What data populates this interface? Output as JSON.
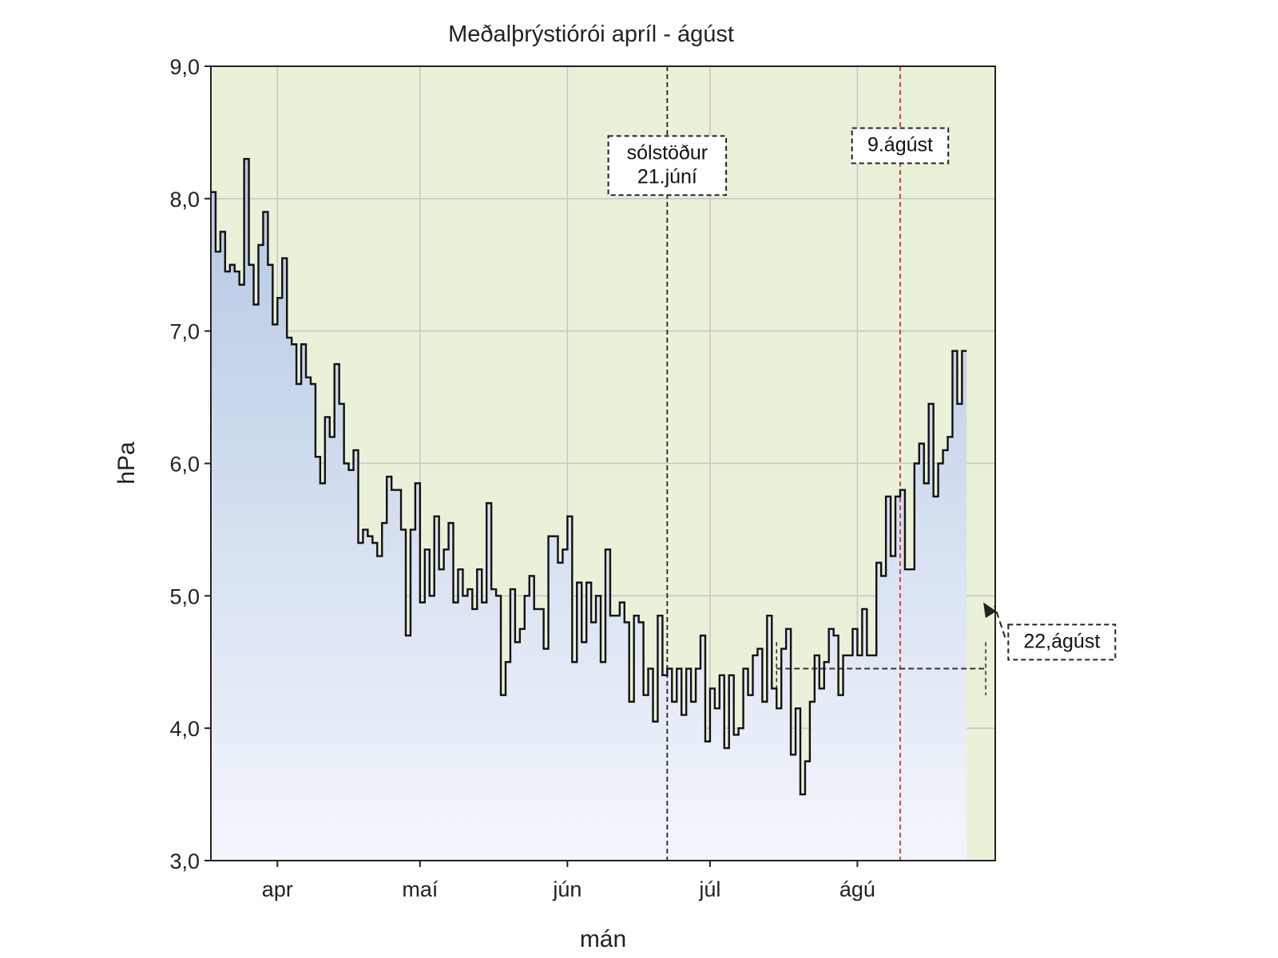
{
  "chart_data": {
    "type": "line",
    "title": "Meðalþrýstiórói apríl - ágúst",
    "xlabel": "mán",
    "ylabel": "hPa",
    "ylim": [
      3.0,
      9.0
    ],
    "yticks": [
      "3,0",
      "4,0",
      "5,0",
      "6,0",
      "7,0",
      "8,0",
      "9,0"
    ],
    "ytick_values": [
      3,
      4,
      5,
      6,
      7,
      8,
      9
    ],
    "xlim": [
      -14,
      151
    ],
    "xticks": [
      "apr",
      "maí",
      "jún",
      "júl",
      "ágú"
    ],
    "xtick_days": [
      0,
      30,
      61,
      91,
      122
    ],
    "grid": true,
    "step": true,
    "series": [
      {
        "values": [
          8.05,
          7.6,
          7.75,
          7.45,
          7.5,
          7.45,
          7.35,
          8.3,
          7.5,
          7.2,
          7.65,
          7.9,
          7.5,
          7.05,
          7.25,
          7.55,
          6.95,
          6.9,
          6.6,
          6.9,
          6.65,
          6.6,
          6.05,
          5.85,
          6.35,
          6.2,
          6.75,
          6.45,
          6.0,
          5.95,
          6.1,
          5.4,
          5.5,
          5.45,
          5.4,
          5.3,
          5.55,
          5.9,
          5.8,
          5.8,
          5.5,
          4.7,
          5.5,
          5.85,
          4.95,
          5.35,
          5.0,
          5.6,
          5.2,
          5.35,
          5.55,
          4.95,
          5.2,
          5.0,
          5.05,
          4.9,
          5.2,
          4.95,
          5.7,
          5.05,
          5.0,
          4.25,
          4.5,
          5.05,
          4.65,
          4.75,
          5.0,
          5.15,
          4.9,
          4.9,
          4.6,
          5.45,
          5.45,
          5.25,
          5.35,
          5.6,
          4.5,
          5.1,
          4.65,
          5.1,
          4.8,
          5.0,
          4.5,
          5.35,
          4.85,
          4.85,
          4.95,
          4.8,
          4.2,
          4.85,
          4.8,
          4.25,
          4.45,
          4.05,
          4.85,
          4.4,
          4.45,
          4.2,
          4.45,
          4.1,
          4.45,
          4.2,
          4.45,
          4.7,
          3.9,
          4.3,
          4.15,
          4.4,
          3.85,
          4.4,
          3.95,
          4.0,
          4.45,
          4.25,
          4.55,
          4.6,
          4.2,
          4.85,
          4.3,
          4.15,
          4.6,
          4.75,
          3.8,
          4.15,
          3.5,
          3.75,
          4.2,
          4.55,
          4.3,
          4.5,
          4.75,
          4.7,
          4.25,
          4.55,
          4.55,
          4.75,
          4.55,
          4.9,
          4.55,
          4.55,
          5.25,
          5.15,
          5.75,
          5.3,
          5.75,
          5.8,
          5.2,
          5.2,
          6.0,
          6.15,
          5.85,
          6.45,
          5.75,
          6.0,
          6.1,
          6.2,
          6.85,
          6.45,
          6.85
        ]
      }
    ],
    "reference_lines": [
      {
        "x": 82,
        "color": "#222222",
        "dash": true
      },
      {
        "x": 131,
        "color": "#e03030",
        "dash": true
      }
    ],
    "reference_segment": {
      "x_start": 105,
      "x_end": 149,
      "y": 4.45
    },
    "bracket_x": [
      105,
      149
    ],
    "annotations": [
      {
        "text_lines": [
          "sólstöður",
          "21.júní"
        ],
        "x": 82,
        "y": 8.25
      },
      {
        "text_lines": [
          "9.ágúst"
        ],
        "x": 131,
        "y": 8.4
      },
      {
        "text_lines": [
          "22,ágúst"
        ],
        "x": 165,
        "y": 4.65,
        "arrow_to_x": 148.5,
        "arrow_to_y": 4.95
      }
    ],
    "colors": {
      "fill_top": "#b4c7e3",
      "fill_bottom": "#f3f6fc",
      "background": "#e9f1d9",
      "line": "#111111",
      "grid": "#c8c8c8"
    }
  }
}
